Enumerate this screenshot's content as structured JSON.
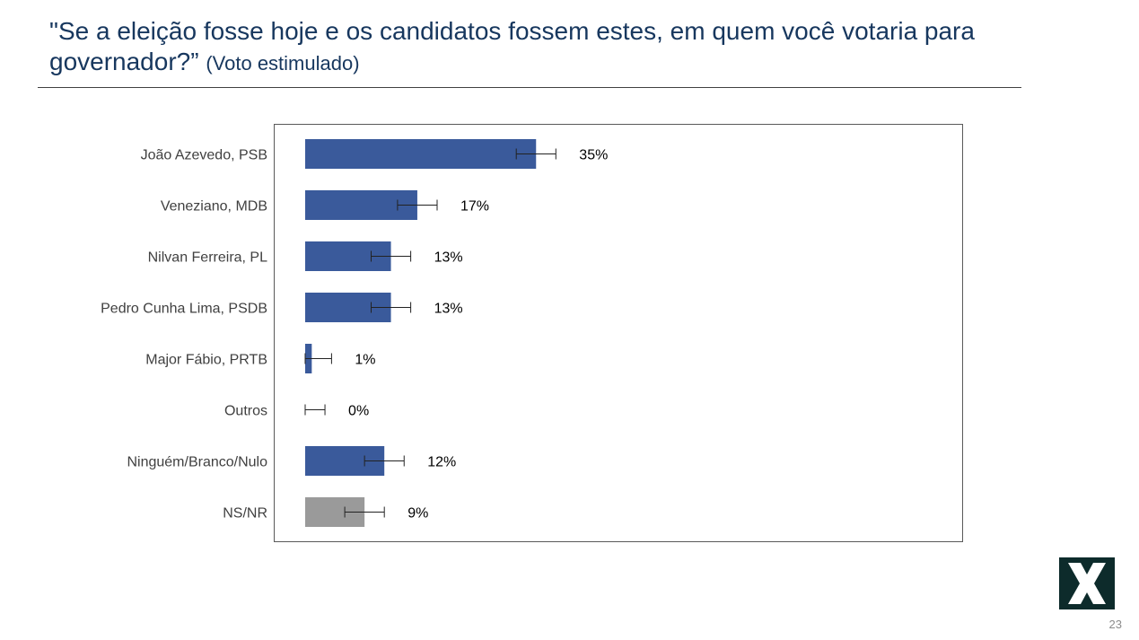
{
  "slide": {
    "title_main": "\"Se a eleição fosse hoje e os candidatos fossem estes, em quem você votaria para governador?”",
    "title_sub": "(Voto estimulado)",
    "page_number": "23",
    "logo_icon": "x-logo-icon"
  },
  "colors": {
    "title": "#17375e",
    "bar_primary": "#3a5a9b",
    "bar_secondary": "#9a9a9a",
    "frame": "#595959"
  },
  "chart_data": {
    "type": "bar",
    "orientation": "horizontal",
    "title": "",
    "xlabel": "",
    "ylabel": "",
    "xlim": [
      0,
      100
    ],
    "grid": false,
    "legend": "none",
    "error_bars": true,
    "categories": [
      "João Azevedo, PSB",
      "Veneziano, MDB",
      "Nilvan Ferreira, PL",
      "Pedro Cunha Lima, PSDB",
      "Major Fábio, PRTB",
      "Outros",
      "Ninguém/Branco/Nulo",
      "NS/NR"
    ],
    "values": [
      35,
      17,
      13,
      13,
      1,
      0,
      12,
      9
    ],
    "labels": [
      "35%",
      "17%",
      "13%",
      "13%",
      "1%",
      "0%",
      "12%",
      "9%"
    ],
    "bar_colors": [
      "#3a5a9b",
      "#3a5a9b",
      "#3a5a9b",
      "#3a5a9b",
      "#3a5a9b",
      "#3a5a9b",
      "#3a5a9b",
      "#9a9a9a"
    ],
    "error_margin": 3
  }
}
